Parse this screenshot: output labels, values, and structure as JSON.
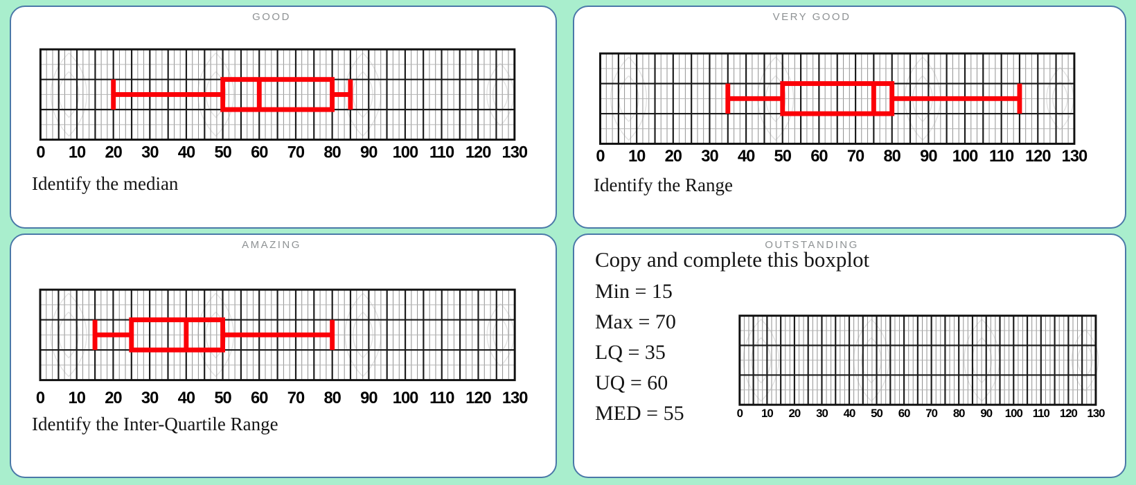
{
  "colors": {
    "background": "#a9eecd",
    "panel_background": "#ffffff",
    "panel_border": "#4a78a8",
    "title_text": "#8e9294",
    "task_text": "#141414",
    "boxplot_red": "#fb0007",
    "grid_major": "#1c1c1c",
    "grid_minor_vertical": "#909090",
    "grid_minor_horizontal": "#b4b4b4"
  },
  "panels": [
    {
      "id": "good",
      "title": "GOOD",
      "task": "Identify the median"
    },
    {
      "id": "verygood",
      "title": "VERY GOOD",
      "task": "Identify the Range"
    },
    {
      "id": "amazing",
      "title": "AMAZING",
      "task": "Identify the Inter-Quartile Range"
    },
    {
      "id": "outstanding",
      "title": "OUTSTANDING",
      "instruction": "Copy and complete this boxplot",
      "stats": [
        {
          "label": "Min",
          "value": 15,
          "text": "Min = 15"
        },
        {
          "label": "Max",
          "value": 70,
          "text": "Max = 70"
        },
        {
          "label": "LQ",
          "value": 35,
          "text": "LQ = 35"
        },
        {
          "label": "UQ",
          "value": 60,
          "text": "UQ = 60"
        },
        {
          "label": "MED",
          "value": 55,
          "text": "MED = 55"
        }
      ]
    }
  ],
  "chart_data": [
    {
      "type": "boxplot",
      "id": "good",
      "title": "GOOD",
      "task": "Identify the median",
      "plotted": true,
      "x_axis": {
        "min": 0,
        "max": 130,
        "tick_step": 10,
        "tick_labels": [
          "0",
          "10",
          "20",
          "30",
          "40",
          "50",
          "60",
          "70",
          "80",
          "90",
          "100",
          "110",
          "120",
          "130"
        ]
      },
      "five_number_summary": {
        "min": 20,
        "q1": 50,
        "median": 60,
        "q3": 80,
        "max": 85
      }
    },
    {
      "type": "boxplot",
      "id": "verygood",
      "title": "VERY GOOD",
      "task": "Identify the Range",
      "plotted": true,
      "x_axis": {
        "min": 0,
        "max": 130,
        "tick_step": 10,
        "tick_labels": [
          "0",
          "10",
          "20",
          "30",
          "40",
          "50",
          "60",
          "70",
          "80",
          "90",
          "100",
          "110",
          "120",
          "130"
        ]
      },
      "five_number_summary": {
        "min": 35,
        "q1": 50,
        "median": 75,
        "q3": 80,
        "max": 115
      }
    },
    {
      "type": "boxplot",
      "id": "amazing",
      "title": "AMAZING",
      "task": "Identify the Inter-Quartile Range",
      "plotted": true,
      "x_axis": {
        "min": 0,
        "max": 130,
        "tick_step": 10,
        "tick_labels": [
          "0",
          "10",
          "20",
          "30",
          "40",
          "50",
          "60",
          "70",
          "80",
          "90",
          "100",
          "110",
          "120",
          "130"
        ]
      },
      "five_number_summary": {
        "min": 15,
        "q1": 25,
        "median": 40,
        "q3": 50,
        "max": 80
      }
    },
    {
      "type": "boxplot",
      "id": "outstanding",
      "title": "OUTSTANDING",
      "task": "Copy and complete this boxplot",
      "plotted": false,
      "x_axis": {
        "min": 0,
        "max": 130,
        "tick_step": 10,
        "tick_labels": [
          "0",
          "10",
          "20",
          "30",
          "40",
          "50",
          "60",
          "70",
          "80",
          "90",
          "100",
          "110",
          "120",
          "130"
        ]
      },
      "five_number_summary": {
        "min": 15,
        "q1": 35,
        "median": 55,
        "q3": 60,
        "max": 70
      }
    }
  ]
}
